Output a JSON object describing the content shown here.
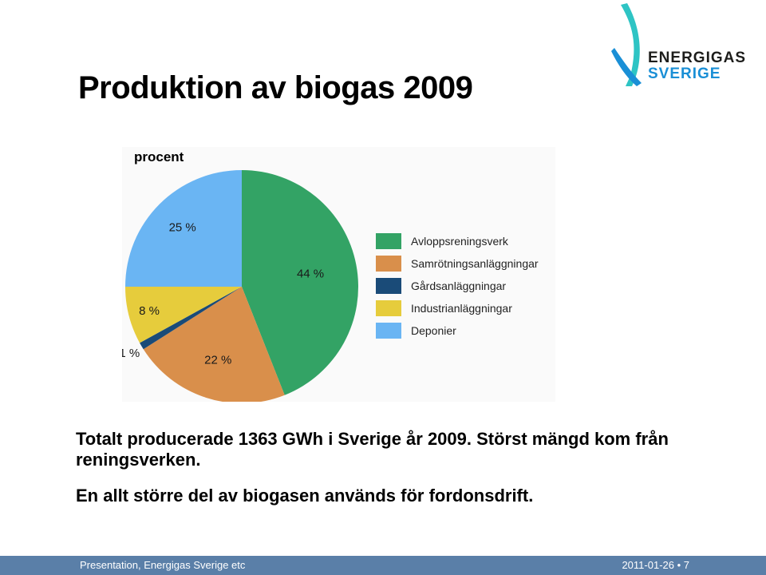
{
  "slide": {
    "title": "Produktion av biogas 2009",
    "paragraph1": "Totalt producerade 1363 GWh i Sverige år 2009. Störst mängd kom från reningsverken.",
    "paragraph2": "En allt större del av biogasen används för fordonsdrift.",
    "logo_line1": "ENERGIGAS",
    "logo_line2": "SVERIGE",
    "footer_left": "Presentation, Energigas Sverige etc",
    "footer_right": "2011-01-26 • 7",
    "colors": {
      "footer": "#5a7fa8",
      "logo_teal": "#2ec4c4",
      "logo_blue": "#1a8fd6"
    }
  },
  "chart_data": {
    "type": "pie",
    "unit_label": "procent",
    "categories": [
      "Avloppsreningsverk",
      "Samrötningsanläggningar",
      "Gårdsanläggningar",
      "Industrianläggningar",
      "Deponier"
    ],
    "values": [
      44,
      22,
      1,
      8,
      25
    ],
    "data_labels": [
      "44 %",
      "22 %",
      "1 %",
      "8 %",
      "25 %"
    ],
    "colors": [
      "#33a365",
      "#d98f4b",
      "#1a4b78",
      "#e6cc3c",
      "#6ab5f3"
    ],
    "legend_position": "right"
  }
}
